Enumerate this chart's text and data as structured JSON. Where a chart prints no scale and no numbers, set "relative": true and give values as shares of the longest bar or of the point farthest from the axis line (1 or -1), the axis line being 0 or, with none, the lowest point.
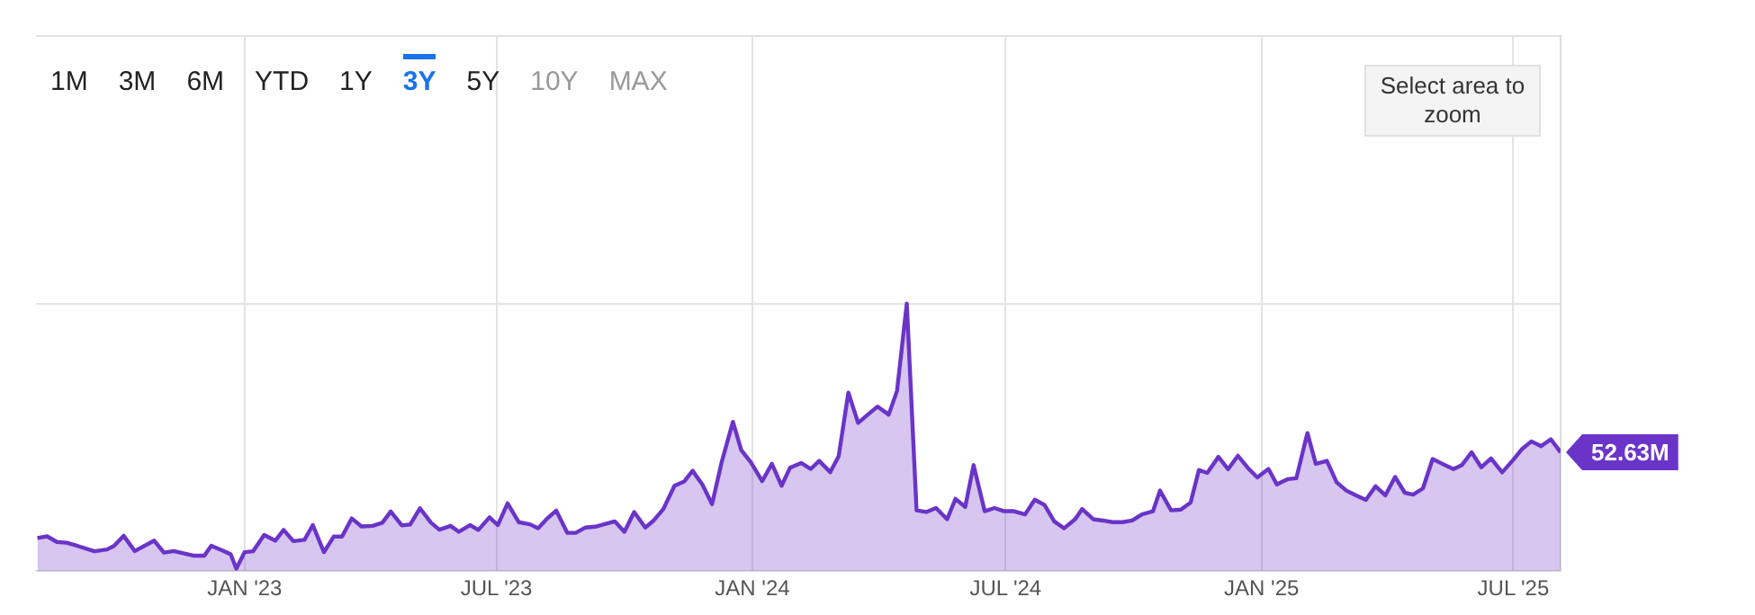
{
  "chart_data": {
    "type": "area",
    "relative": true,
    "grid": true,
    "legend": false,
    "xlim": [
      "2022-08-04",
      "2025-08-04"
    ],
    "xticks": [
      {
        "value": "2023-01-01",
        "label": "JAN '23"
      },
      {
        "value": "2023-07-01",
        "label": "JUL '23"
      },
      {
        "value": "2024-01-01",
        "label": "JAN '24"
      },
      {
        "value": "2024-07-01",
        "label": "JUL '24"
      },
      {
        "value": "2025-01-01",
        "label": "JAN '25"
      },
      {
        "value": "2025-07-01",
        "label": "JUL '25"
      }
    ],
    "annotations": [
      "1M",
      "3M",
      "6M",
      "YTD",
      "1Y",
      "3Y",
      "5Y",
      "10Y",
      "MAX",
      "Select area to zoom",
      {
        "text": "52.63M",
        "x": "2025-08-04",
        "y": 0.444
      }
    ],
    "series": [
      {
        "color": "#6a34c8",
        "x": [
          "2022-08-05",
          "2022-08-12",
          "2022-08-19",
          "2022-08-26",
          "2022-09-03",
          "2022-09-15",
          "2022-09-24",
          "2022-09-29",
          "2022-10-06",
          "2022-10-14",
          "2022-10-28",
          "2022-11-04",
          "2022-11-11",
          "2022-11-25",
          "2022-12-03",
          "2022-12-08",
          "2022-12-16",
          "2022-12-22",
          "2022-12-26",
          "2023-01-01",
          "2023-01-07",
          "2023-01-15",
          "2023-01-23",
          "2023-01-29",
          "2023-02-05",
          "2023-02-13",
          "2023-02-19",
          "2023-02-27",
          "2023-03-06",
          "2023-03-12",
          "2023-03-19",
          "2023-03-26",
          "2023-04-03",
          "2023-04-10",
          "2023-04-16",
          "2023-04-24",
          "2023-04-30",
          "2023-05-07",
          "2023-05-15",
          "2023-05-21",
          "2023-05-29",
          "2023-06-04",
          "2023-06-12",
          "2023-06-18",
          "2023-06-26",
          "2023-07-02",
          "2023-07-09",
          "2023-07-17",
          "2023-07-25",
          "2023-07-31",
          "2023-08-06",
          "2023-08-13",
          "2023-08-21",
          "2023-08-27",
          "2023-09-03",
          "2023-09-10",
          "2023-09-24",
          "2023-10-01",
          "2023-10-08",
          "2023-10-16",
          "2023-10-22",
          "2023-10-29",
          "2023-11-06",
          "2023-11-13",
          "2023-11-19",
          "2023-11-26",
          "2023-12-03",
          "2023-12-10",
          "2023-12-18",
          "2023-12-24",
          "2023-12-31",
          "2024-01-08",
          "2024-01-15",
          "2024-01-22",
          "2024-01-28",
          "2024-02-05",
          "2024-02-12",
          "2024-02-18",
          "2024-02-26",
          "2024-03-03",
          "2024-03-10",
          "2024-03-17",
          "2024-03-24",
          "2024-03-31",
          "2024-04-08",
          "2024-04-14",
          "2024-04-21",
          "2024-04-28",
          "2024-05-05",
          "2024-05-12",
          "2024-05-20",
          "2024-05-26",
          "2024-06-02",
          "2024-06-08",
          "2024-06-16",
          "2024-06-23",
          "2024-06-30",
          "2024-07-07",
          "2024-07-15",
          "2024-07-22",
          "2024-07-29",
          "2024-08-05",
          "2024-08-12",
          "2024-08-20",
          "2024-08-25",
          "2024-09-02",
          "2024-09-09",
          "2024-09-16",
          "2024-09-23",
          "2024-09-30",
          "2024-10-07",
          "2024-10-15",
          "2024-10-20",
          "2024-10-28",
          "2024-11-04",
          "2024-11-11",
          "2024-11-17",
          "2024-11-23",
          "2024-12-01",
          "2024-12-08",
          "2024-12-15",
          "2024-12-23",
          "2024-12-29",
          "2025-01-06",
          "2025-01-12",
          "2025-01-20",
          "2025-01-26",
          "2025-02-03",
          "2025-02-09",
          "2025-02-17",
          "2025-02-24",
          "2025-03-03",
          "2025-03-10",
          "2025-03-17",
          "2025-03-24",
          "2025-03-31",
          "2025-04-07",
          "2025-04-14",
          "2025-04-20",
          "2025-04-27",
          "2025-05-04",
          "2025-05-11",
          "2025-05-19",
          "2025-05-25",
          "2025-06-01",
          "2025-06-08",
          "2025-06-15",
          "2025-06-23",
          "2025-07-01",
          "2025-07-07",
          "2025-07-14",
          "2025-07-21",
          "2025-07-28",
          "2025-08-04"
        ],
        "values": [
          0.124,
          0.13,
          0.109,
          0.106,
          0.094,
          0.074,
          0.081,
          0.094,
          0.132,
          0.075,
          0.114,
          0.069,
          0.075,
          0.058,
          0.058,
          0.095,
          0.077,
          0.063,
          0.009,
          0.071,
          0.074,
          0.135,
          0.114,
          0.154,
          0.112,
          0.117,
          0.172,
          0.071,
          0.129,
          0.129,
          0.197,
          0.167,
          0.169,
          0.181,
          0.223,
          0.171,
          0.174,
          0.235,
          0.181,
          0.155,
          0.169,
          0.147,
          0.172,
          0.154,
          0.201,
          0.172,
          0.253,
          0.183,
          0.175,
          0.16,
          0.194,
          0.226,
          0.143,
          0.143,
          0.163,
          0.166,
          0.186,
          0.147,
          0.221,
          0.163,
          0.189,
          0.232,
          0.319,
          0.335,
          0.375,
          0.324,
          0.25,
          0.409,
          0.558,
          0.452,
          0.406,
          0.336,
          0.401,
          0.319,
          0.386,
          0.404,
          0.382,
          0.412,
          0.37,
          0.429,
          0.667,
          0.554,
          0.585,
          0.615,
          0.585,
          0.674,
          1,
          0.227,
          0.221,
          0.236,
          0.194,
          0.27,
          0.24,
          0.396,
          0.224,
          0.236,
          0.224,
          0.224,
          0.212,
          0.267,
          0.247,
          0.186,
          0.16,
          0.194,
          0.232,
          0.194,
          0.189,
          0.183,
          0.183,
          0.189,
          0.212,
          0.224,
          0.301,
          0.227,
          0.23,
          0.256,
          0.378,
          0.367,
          0.427,
          0.381,
          0.431,
          0.381,
          0.35,
          0.382,
          0.324,
          0.344,
          0.347,
          0.516,
          0.401,
          0.412,
          0.332,
          0.301,
          0.283,
          0.266,
          0.317,
          0.283,
          0.352,
          0.293,
          0.286,
          0.309,
          0.419,
          0.401,
          0.381,
          0.396,
          0.444,
          0.388,
          0.421,
          0.369,
          0.416,
          0.455,
          0.485,
          0.467,
          0.493,
          0.444
        ]
      }
    ]
  }
}
